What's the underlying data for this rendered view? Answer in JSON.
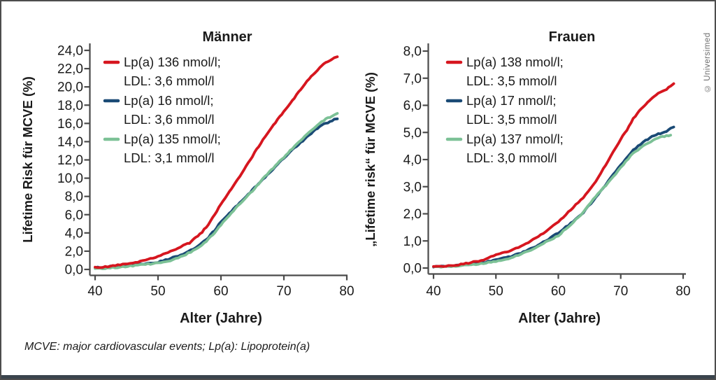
{
  "copyright": "© Universimed",
  "footnote": "MCVE: major cardiovascular events; Lp(a): Lipoprotein(a)",
  "colors": {
    "red": "#d6161f",
    "blue": "#1a4a75",
    "green": "#7cc196",
    "axis": "#4a4a4a",
    "text": "#1a1a1a",
    "border": "#4d4d4d",
    "bottom_bar": "#3a444d",
    "copyright_text": "#6d6d6d"
  },
  "chart_data": [
    {
      "type": "line",
      "title": "Männer",
      "xlabel": "Alter (Jahre)",
      "ylabel": "Lifetime Risk für MCVE (%)",
      "xlim": [
        40,
        80
      ],
      "ylim": [
        0,
        24
      ],
      "grid": false,
      "legend_position": "top-left-inside",
      "xticks": [
        40,
        50,
        60,
        70,
        80
      ],
      "xtick_labels": [
        "40",
        "50",
        "60",
        "70",
        "80"
      ],
      "yticks": [
        0,
        2,
        4,
        6,
        8,
        10,
        12,
        14,
        16,
        18,
        20,
        22,
        24
      ],
      "ytick_labels": [
        "0,0",
        "2,0",
        "4,0",
        "6,0",
        "8,0",
        "10,0",
        "12,0",
        "14,0",
        "16,0",
        "18,0",
        "20,0",
        "22,0",
        "24,0"
      ],
      "series": [
        {
          "name": "Lp(a) 136 nmol/l;",
          "name_line2": "LDL: 3,6 mmol/l",
          "color_key": "red",
          "points": [
            [
              40,
              0.2
            ],
            [
              42,
              0.3
            ],
            [
              44,
              0.5
            ],
            [
              46,
              0.7
            ],
            [
              48,
              1.0
            ],
            [
              50,
              1.4
            ],
            [
              52,
              2.0
            ],
            [
              54,
              2.6
            ],
            [
              55,
              2.9
            ],
            [
              56,
              3.5
            ],
            [
              57,
              4.1
            ],
            [
              58,
              4.9
            ],
            [
              59,
              6.0
            ],
            [
              60,
              7.2
            ],
            [
              61,
              8.2
            ],
            [
              62,
              9.2
            ],
            [
              63,
              10.2
            ],
            [
              64,
              11.3
            ],
            [
              65,
              12.4
            ],
            [
              66,
              13.5
            ],
            [
              67,
              14.5
            ],
            [
              68,
              15.5
            ],
            [
              69,
              16.4
            ],
            [
              70,
              17.3
            ],
            [
              71,
              18.2
            ],
            [
              72,
              19.1
            ],
            [
              73,
              20.0
            ],
            [
              74,
              20.9
            ],
            [
              75,
              21.6
            ],
            [
              76,
              22.3
            ],
            [
              77,
              22.8
            ],
            [
              78,
              23.2
            ],
            [
              78.5,
              23.3
            ]
          ]
        },
        {
          "name": "Lp(a) 16 nmol/l;",
          "name_line2": "LDL: 3,6 mmol/l",
          "color_key": "blue",
          "points": [
            [
              40,
              0.2
            ],
            [
              42,
              0.3
            ],
            [
              44,
              0.4
            ],
            [
              46,
              0.55
            ],
            [
              48,
              0.65
            ],
            [
              50,
              0.8
            ],
            [
              52,
              1.2
            ],
            [
              54,
              1.7
            ],
            [
              56,
              2.4
            ],
            [
              57,
              2.9
            ],
            [
              58,
              3.5
            ],
            [
              59,
              4.3
            ],
            [
              60,
              5.2
            ],
            [
              61,
              5.9
            ],
            [
              62,
              6.6
            ],
            [
              63,
              7.3
            ],
            [
              64,
              8.0
            ],
            [
              65,
              8.7
            ],
            [
              66,
              9.4
            ],
            [
              67,
              10.1
            ],
            [
              68,
              10.8
            ],
            [
              69,
              11.5
            ],
            [
              70,
              12.2
            ],
            [
              71,
              12.9
            ],
            [
              72,
              13.5
            ],
            [
              73,
              14.1
            ],
            [
              74,
              14.7
            ],
            [
              75,
              15.3
            ],
            [
              76,
              15.8
            ],
            [
              77,
              16.1
            ],
            [
              78,
              16.4
            ],
            [
              78.5,
              16.5
            ]
          ]
        },
        {
          "name": "Lp(a) 135 nmol/l;",
          "name_line2": "LDL: 3,1 mmol/l",
          "color_key": "green",
          "points": [
            [
              40,
              0.05
            ],
            [
              42,
              0.15
            ],
            [
              44,
              0.25
            ],
            [
              46,
              0.4
            ],
            [
              48,
              0.55
            ],
            [
              50,
              0.7
            ],
            [
              52,
              1.0
            ],
            [
              54,
              1.5
            ],
            [
              56,
              2.2
            ],
            [
              57,
              2.7
            ],
            [
              58,
              3.3
            ],
            [
              59,
              4.0
            ],
            [
              60,
              4.9
            ],
            [
              61,
              5.7
            ],
            [
              62,
              6.4
            ],
            [
              63,
              7.2
            ],
            [
              64,
              7.9
            ],
            [
              65,
              8.6
            ],
            [
              66,
              9.4
            ],
            [
              67,
              10.2
            ],
            [
              68,
              10.9
            ],
            [
              69,
              11.6
            ],
            [
              70,
              12.3
            ],
            [
              71,
              13.0
            ],
            [
              72,
              13.7
            ],
            [
              73,
              14.4
            ],
            [
              74,
              15.0
            ],
            [
              75,
              15.6
            ],
            [
              76,
              16.2
            ],
            [
              77,
              16.6
            ],
            [
              78,
              16.9
            ],
            [
              78.5,
              17.1
            ]
          ]
        }
      ]
    },
    {
      "type": "line",
      "title": "Frauen",
      "xlabel": "Alter (Jahre)",
      "ylabel": "„Lifetime risk“ für MCVE (%)",
      "xlim": [
        40,
        80
      ],
      "ylim": [
        0,
        8
      ],
      "grid": false,
      "legend_position": "top-left-inside",
      "xticks": [
        40,
        50,
        60,
        70,
        80
      ],
      "xtick_labels": [
        "40",
        "50",
        "60",
        "70",
        "80"
      ],
      "yticks": [
        0,
        1,
        2,
        3,
        4,
        5,
        6,
        7,
        8
      ],
      "ytick_labels": [
        "0,0",
        "1,0",
        "2,0",
        "3,0",
        "4,0",
        "5,0",
        "6,0",
        "7,0",
        "8,0"
      ],
      "series": [
        {
          "name": "Lp(a) 138 nmol/l;",
          "name_line2": "LDL: 3,5 mmol/l",
          "color_key": "red",
          "points": [
            [
              40,
              0.05
            ],
            [
              42,
              0.08
            ],
            [
              44,
              0.12
            ],
            [
              46,
              0.2
            ],
            [
              48,
              0.3
            ],
            [
              50,
              0.5
            ],
            [
              51,
              0.55
            ],
            [
              52,
              0.62
            ],
            [
              54,
              0.8
            ],
            [
              56,
              1.05
            ],
            [
              58,
              1.35
            ],
            [
              60,
              1.7
            ],
            [
              62,
              2.15
            ],
            [
              64,
              2.6
            ],
            [
              66,
              3.2
            ],
            [
              68,
              3.95
            ],
            [
              70,
              4.75
            ],
            [
              71,
              5.1
            ],
            [
              72,
              5.5
            ],
            [
              73,
              5.8
            ],
            [
              74,
              6.05
            ],
            [
              75,
              6.25
            ],
            [
              76,
              6.45
            ],
            [
              77,
              6.55
            ],
            [
              78,
              6.7
            ],
            [
              78.5,
              6.8
            ]
          ]
        },
        {
          "name": "Lp(a) 17 nmol/l;",
          "name_line2": "LDL: 3,5 mmol/l",
          "color_key": "blue",
          "points": [
            [
              40,
              0.05
            ],
            [
              42,
              0.06
            ],
            [
              44,
              0.1
            ],
            [
              46,
              0.15
            ],
            [
              48,
              0.2
            ],
            [
              50,
              0.3
            ],
            [
              52,
              0.4
            ],
            [
              54,
              0.55
            ],
            [
              56,
              0.75
            ],
            [
              58,
              1.0
            ],
            [
              60,
              1.3
            ],
            [
              62,
              1.65
            ],
            [
              64,
              2.05
            ],
            [
              66,
              2.6
            ],
            [
              68,
              3.2
            ],
            [
              70,
              3.8
            ],
            [
              72,
              4.35
            ],
            [
              74,
              4.7
            ],
            [
              75,
              4.85
            ],
            [
              76,
              4.95
            ],
            [
              77,
              5.0
            ],
            [
              78,
              5.15
            ],
            [
              78.5,
              5.2
            ]
          ]
        },
        {
          "name": "Lp(a) 137 nmol/l;",
          "name_line2": "LDL: 3,0 mmol/l",
          "color_key": "green",
          "points": [
            [
              40,
              0.05
            ],
            [
              42,
              0.05
            ],
            [
              44,
              0.08
            ],
            [
              46,
              0.12
            ],
            [
              48,
              0.17
            ],
            [
              50,
              0.25
            ],
            [
              52,
              0.35
            ],
            [
              54,
              0.5
            ],
            [
              56,
              0.7
            ],
            [
              58,
              0.95
            ],
            [
              60,
              1.2
            ],
            [
              62,
              1.6
            ],
            [
              64,
              2.05
            ],
            [
              66,
              2.65
            ],
            [
              68,
              3.15
            ],
            [
              70,
              3.7
            ],
            [
              72,
              4.25
            ],
            [
              74,
              4.55
            ],
            [
              76,
              4.8
            ],
            [
              77,
              4.85
            ],
            [
              78,
              4.9
            ]
          ]
        }
      ]
    }
  ]
}
